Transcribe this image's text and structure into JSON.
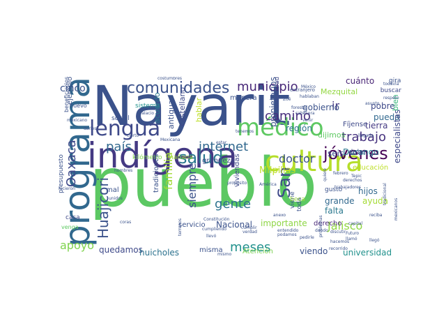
{
  "word_cloud": {
    "words": [
      {
        "text": "pueblo",
        "color": "#5cc863"
      },
      {
        "text": "Nayarit",
        "color": "#3b528b"
      },
      {
        "text": "indígena",
        "color": "#443983"
      },
      {
        "text": "programa",
        "color": "#31688e"
      },
      {
        "text": "cultura",
        "color": "#b5de2b"
      },
      {
        "text": "lengua",
        "color": "#3e4989"
      },
      {
        "text": "médico",
        "color": "#5ec962"
      },
      {
        "text": "comunidades",
        "color": "#3b528b"
      },
      {
        "text": "salud",
        "color": "#2a788e"
      },
      {
        "text": "jóvenes",
        "color": "#440154"
      },
      {
        "text": "San",
        "color": "#3e4a89"
      },
      {
        "text": "internet",
        "color": "#31688e"
      },
      {
        "text": "municipio",
        "color": "#482878"
      },
      {
        "text": "camino",
        "color": "#472d7b"
      },
      {
        "text": "trabajo",
        "color": "#46327e"
      },
      {
        "text": "doctor",
        "color": "#3b528b"
      },
      {
        "text": "país",
        "color": "#31688e"
      },
      {
        "text": "gente",
        "color": "#2c728e"
      },
      {
        "text": "meses",
        "color": "#21918c"
      },
      {
        "text": "Oaxaca",
        "color": "#3e4989"
      },
      {
        "text": "Huajicori",
        "color": "#3b528b"
      },
      {
        "text": "familia",
        "color": "#a2da37"
      },
      {
        "text": "siempre",
        "color": "#3b528b"
      },
      {
        "text": "Jalisco",
        "color": "#90d743"
      },
      {
        "text": "apoyo",
        "color": "#7fd34e"
      },
      {
        "text": "cinco",
        "color": "#3b528b"
      },
      {
        "text": "Milpillas",
        "color": "#bddf26"
      },
      {
        "text": "ir",
        "color": "#443a83"
      },
      {
        "text": "pobre",
        "color": "#3e4989"
      },
      {
        "text": "pueda",
        "color": "#31688e"
      },
      {
        "text": "tierra",
        "color": "#443983"
      },
      {
        "text": "región",
        "color": "#2c728e"
      },
      {
        "text": "gobierno",
        "color": "#3b528b"
      },
      {
        "text": "cuánto",
        "color": "#482475"
      },
      {
        "text": "bien",
        "color": "#35b779"
      },
      {
        "text": "Durango",
        "color": "#2a788e"
      },
      {
        "text": "seis",
        "color": "#3b528b"
      },
      {
        "text": "importante",
        "color": "#8ed645"
      },
      {
        "text": "universidad",
        "color": "#21918c"
      },
      {
        "text": "quedamos",
        "color": "#3e4989"
      },
      {
        "text": "huicholes",
        "color": "#2c728e"
      },
      {
        "text": "Nacional",
        "color": "#3b528b"
      },
      {
        "text": "hijos",
        "color": "#31688e"
      },
      {
        "text": "especialistas",
        "color": "#3e4989"
      },
      {
        "text": "ayuda",
        "color": "#a5db36"
      },
      {
        "text": "falta",
        "color": "#2a788e"
      },
      {
        "text": "grande",
        "color": "#31688e"
      },
      {
        "text": "viendo",
        "color": "#3b528b"
      },
      {
        "text": "Atención",
        "color": "#7ad151"
      },
      {
        "text": "misma",
        "color": "#3b528b"
      },
      {
        "text": "derecho",
        "color": "#482878"
      },
      {
        "text": "educación",
        "color": "#bddf26"
      },
      {
        "text": "debe",
        "color": "#3b528b"
      },
      {
        "text": "Fíjense",
        "color": "#3e4989"
      },
      {
        "text": "dijimos",
        "color": "#5ec962"
      },
      {
        "text": "Mezquital",
        "color": "#93d741"
      },
      {
        "text": "comunidad",
        "color": "#3e4989"
      },
      {
        "text": "propietarios",
        "color": "#3b528b"
      },
      {
        "text": "viviendas",
        "color": "#3e4989"
      },
      {
        "text": "servicio",
        "color": "#3b528b"
      },
      {
        "text": "manera",
        "color": "#3b528b"
      },
      {
        "text": "grandeza",
        "color": "#3e4989"
      },
      {
        "text": "hablar",
        "color": "#bddf26"
      },
      {
        "text": "mañana",
        "color": "#a0da39"
      },
      {
        "text": "kilómetro",
        "color": "#7fd34e"
      },
      {
        "text": "castellano",
        "color": "#3e4989"
      },
      {
        "text": "antigua",
        "color": "#3b528b"
      },
      {
        "text": "acuerdo",
        "color": "#2a788e"
      },
      {
        "text": "sistema",
        "color": "#21918c"
      },
      {
        "text": "social",
        "color": "#3b528b"
      },
      {
        "text": "beneficiarios",
        "color": "#3b528b"
      },
      {
        "text": "presupuesto",
        "color": "#3b528b"
      },
      {
        "text": "venga",
        "color": "#5ec962"
      },
      {
        "text": "casa",
        "color": "#3e4989"
      },
      {
        "text": "mal",
        "color": "#3b528b"
      },
      {
        "text": "ejemplo",
        "color": "#3b528b"
      },
      {
        "text": "nuevo",
        "color": "#3b528b"
      },
      {
        "text": "tradiciones",
        "color": "#3b528b"
      },
      {
        "text": "viene",
        "color": "#3b528b"
      },
      {
        "text": "toda",
        "color": "#3b528b"
      },
      {
        "text": "beca",
        "color": "#9bd93c"
      },
      {
        "text": "gusto",
        "color": "#3b528b"
      },
      {
        "text": "buscar",
        "color": "#3e4989"
      },
      {
        "text": "gira",
        "color": "#3b528b"
      },
      {
        "text": "extranjero",
        "color": "#3b528b"
      },
      {
        "text": "Mexicana",
        "color": "#3b528b"
      },
      {
        "text": "mexicano",
        "color": "#3b528b"
      },
      {
        "text": "unidos",
        "color": "#3b528b"
      },
      {
        "text": "propósito",
        "color": "#3b528b"
      },
      {
        "text": "hicieron",
        "color": "#3b528b"
      },
      {
        "text": "costumbres",
        "color": "#3b528b"
      },
      {
        "text": "Palacio",
        "color": "#3b528b"
      },
      {
        "text": "terrenos",
        "color": "#3b528b"
      },
      {
        "text": "cierto",
        "color": "#3b528b"
      },
      {
        "text": "Constitución",
        "color": "#3b528b"
      },
      {
        "text": "cumpliendo",
        "color": "#3b528b"
      },
      {
        "text": "pedirle",
        "color": "#3b528b"
      },
      {
        "text": "hablaban",
        "color": "#3b528b"
      },
      {
        "text": "México",
        "color": "#3b528b"
      },
      {
        "text": "todavía",
        "color": "#3b528b"
      },
      {
        "text": "respeto",
        "color": "#3b528b"
      },
      {
        "text": "hombres",
        "color": "#3b528b"
      },
      {
        "text": "capital",
        "color": "#3b528b"
      },
      {
        "text": "Futuro",
        "color": "#3b528b"
      },
      {
        "text": "llamó",
        "color": "#3b528b"
      },
      {
        "text": "discutir",
        "color": "#3b528b"
      },
      {
        "text": "recorrido",
        "color": "#3b528b"
      },
      {
        "text": "llegó",
        "color": "#3b528b"
      },
      {
        "text": "anexo",
        "color": "#3b528b"
      },
      {
        "text": "cumplir",
        "color": "#3b528b"
      },
      {
        "text": "verdad",
        "color": "#3b528b"
      },
      {
        "text": "llevó",
        "color": "#3b528b"
      },
      {
        "text": "entendido",
        "color": "#3b528b"
      },
      {
        "text": "podamos",
        "color": "#3b528b"
      },
      {
        "text": "América",
        "color": "#3b528b"
      },
      {
        "text": "mismo",
        "color": "#3b528b"
      },
      {
        "text": "coras",
        "color": "#3b528b"
      },
      {
        "text": "dárles",
        "color": "#3b528b"
      },
      {
        "text": "derechos",
        "color": "#3b528b"
      },
      {
        "text": "estar",
        "color": "#3b528b"
      },
      {
        "text": "Tepic",
        "color": "#3b528b"
      },
      {
        "text": "tenemos",
        "color": "#3b528b"
      },
      {
        "text": "quiere",
        "color": "#3b528b"
      },
      {
        "text": "forestal",
        "color": "#3b528b"
      },
      {
        "text": "cabecera",
        "color": "#3b528b"
      },
      {
        "text": "Zoé",
        "color": "#3b528b"
      },
      {
        "text": "venir",
        "color": "#3b528b"
      },
      {
        "text": "asunto",
        "color": "#3b528b"
      },
      {
        "text": "llegada",
        "color": "#3b528b"
      },
      {
        "text": "febrero",
        "color": "#3b528b"
      },
      {
        "text": "trabajadores",
        "color": "#3b528b"
      },
      {
        "text": "problemas",
        "color": "#3b528b"
      },
      {
        "text": "dando",
        "color": "#3b528b"
      },
      {
        "text": "hacemos",
        "color": "#3b528b"
      },
      {
        "text": "mexicanos",
        "color": "#3b528b"
      },
      {
        "text": "tradicional",
        "color": "#3b528b"
      },
      {
        "text": "reciba",
        "color": "#3b528b"
      }
    ]
  }
}
